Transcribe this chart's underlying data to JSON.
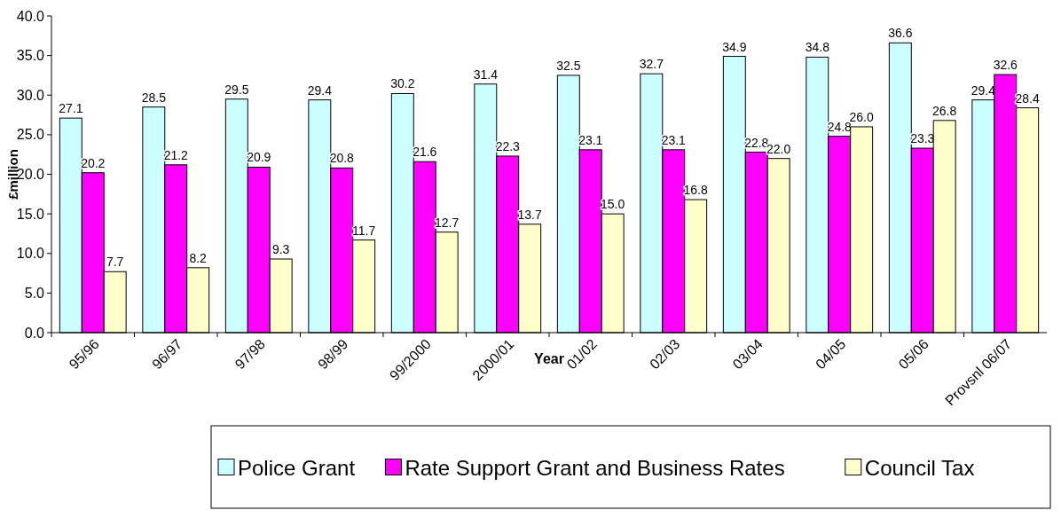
{
  "chart_data": {
    "type": "bar",
    "xlabel": "Year",
    "ylabel": "£million",
    "categories": [
      "95/96",
      "96/97",
      "97/98",
      "98/99",
      "99/2000",
      "2000/01",
      "01/02",
      "02/03",
      "03/04",
      "04/05",
      "05/06",
      "Provsnl 06/07"
    ],
    "series": [
      {
        "name": "Police Grant",
        "color": "#ccffff",
        "values": [
          27.1,
          28.5,
          29.5,
          29.4,
          30.2,
          31.4,
          32.5,
          32.7,
          34.9,
          34.8,
          36.6,
          29.4
        ],
        "value_labels": [
          "27.1",
          "28.5",
          "29.5",
          "29.4",
          "30.2",
          "31.4",
          "32.5",
          "32.7",
          "34.9",
          "34.8",
          "36.6",
          "29.4"
        ]
      },
      {
        "name": "Rate Support Grant and Business Rates",
        "color": "#ff00ff",
        "values": [
          20.2,
          21.2,
          20.9,
          20.8,
          21.6,
          22.3,
          23.1,
          23.1,
          22.8,
          24.8,
          23.3,
          32.6
        ],
        "value_labels": [
          "20.2",
          "21.2",
          "20.9",
          "20.8",
          "21.6",
          "22.3",
          "23.1",
          "23.1",
          "22.8",
          "24.8",
          "23.3",
          "32.6"
        ]
      },
      {
        "name": "Council Tax",
        "color": "#ffffcc",
        "values": [
          7.7,
          8.2,
          9.3,
          11.7,
          12.7,
          13.7,
          15.0,
          16.8,
          22.0,
          26.0,
          26.8,
          28.4
        ],
        "value_labels": [
          "7.7",
          "8.2",
          "9.3",
          "11.7",
          "12.7",
          "13.7",
          "15.0",
          "16.8",
          "22.0",
          "26.0",
          "26.8",
          "28.4"
        ]
      }
    ],
    "ylim": [
      0,
      40
    ],
    "yticks": [
      {
        "value": 0,
        "label": "0.0"
      },
      {
        "value": 5,
        "label": "5.0"
      },
      {
        "value": 10,
        "label": "10.0"
      },
      {
        "value": 15,
        "label": "15.0"
      },
      {
        "value": 20,
        "label": "20.0"
      },
      {
        "value": 25,
        "label": "25.0"
      },
      {
        "value": 30,
        "label": "30.0"
      },
      {
        "value": 35,
        "label": "35.0"
      },
      {
        "value": 40,
        "label": "40.0"
      }
    ],
    "legend": "bottom",
    "grid": false
  }
}
